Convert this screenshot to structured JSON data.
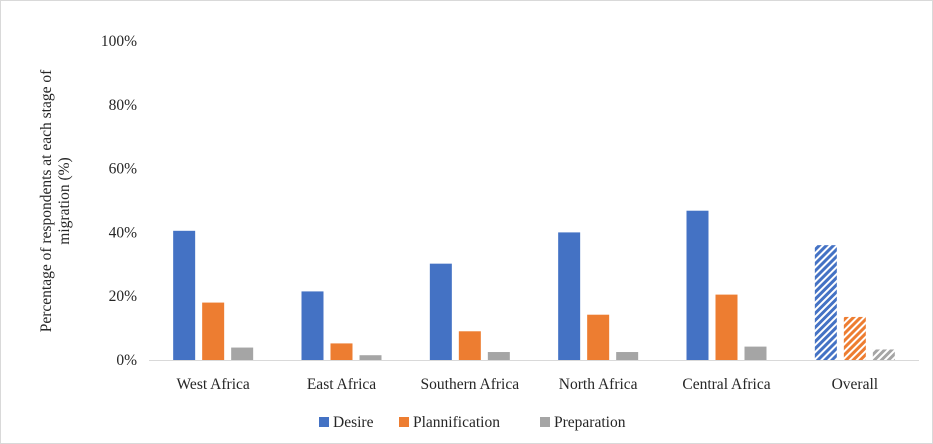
{
  "chart_data": {
    "type": "bar",
    "title": "",
    "xlabel": "",
    "ylabel_lines": [
      "Percentage of respondents at each stage of",
      "migration  (%)"
    ],
    "ylim": [
      0,
      100
    ],
    "yticks": [
      "0%",
      "20%",
      "40%",
      "60%",
      "80%",
      "100%"
    ],
    "ytick_values": [
      0,
      20,
      40,
      60,
      80,
      100
    ],
    "grid": false,
    "legend_position": "bottom",
    "categories": [
      "West Africa",
      "East Africa",
      "Southern Africa",
      "North Africa",
      "Central Africa",
      "Overall"
    ],
    "hatched_categories": [
      "Overall"
    ],
    "series": [
      {
        "name": "Desire",
        "color": "#4472c4",
        "values": [
          40.5,
          21.5,
          30.2,
          40.0,
          46.8,
          36.0
        ]
      },
      {
        "name": "Plannification",
        "color": "#ed7d31",
        "values": [
          18.0,
          5.2,
          9.0,
          14.2,
          20.5,
          13.5
        ]
      },
      {
        "name": "Preparation",
        "color": "#a5a5a5",
        "values": [
          3.9,
          1.5,
          2.5,
          2.5,
          4.2,
          3.3
        ]
      }
    ]
  }
}
